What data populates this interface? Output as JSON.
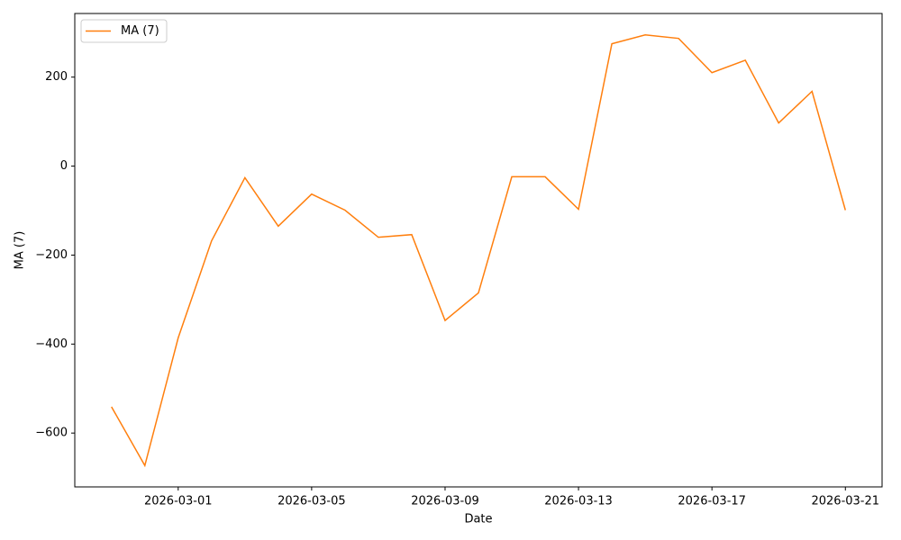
{
  "chart_data": {
    "type": "line",
    "x_label": "Date",
    "y_label": "MA (7)",
    "x": [
      "2026-02-27",
      "2026-02-28",
      "2026-03-01",
      "2026-03-02",
      "2026-03-03",
      "2026-03-04",
      "2026-03-05",
      "2026-03-06",
      "2026-03-07",
      "2026-03-08",
      "2026-03-09",
      "2026-03-10",
      "2026-03-11",
      "2026-03-12",
      "2026-03-13",
      "2026-03-14",
      "2026-03-15",
      "2026-03-16",
      "2026-03-17",
      "2026-03-18",
      "2026-03-19",
      "2026-03-20",
      "2026-03-21"
    ],
    "series": [
      {
        "name": "MA (7)",
        "color": "#ff7f0e",
        "values": [
          -541,
          -673,
          -386,
          -168,
          -26,
          -135,
          -63,
          -99,
          -160,
          -154,
          -347,
          -285,
          -24,
          -24,
          -97,
          275,
          295,
          287,
          210,
          238,
          97,
          168,
          -99
        ]
      }
    ],
    "xlim": [
      "2026-02-25T21:36:00Z",
      "2026-03-22T02:24:00Z"
    ],
    "xticks": [
      "2026-03-01",
      "2026-03-05",
      "2026-03-09",
      "2026-03-13",
      "2026-03-17",
      "2026-03-21"
    ],
    "ylim": [
      -721,
      343
    ],
    "yticks": [
      {
        "value": -600,
        "label": "−600"
      },
      {
        "value": -400,
        "label": "−400"
      },
      {
        "value": -200,
        "label": "−200"
      },
      0,
      200
    ],
    "grid": false,
    "legend": "upper left"
  }
}
